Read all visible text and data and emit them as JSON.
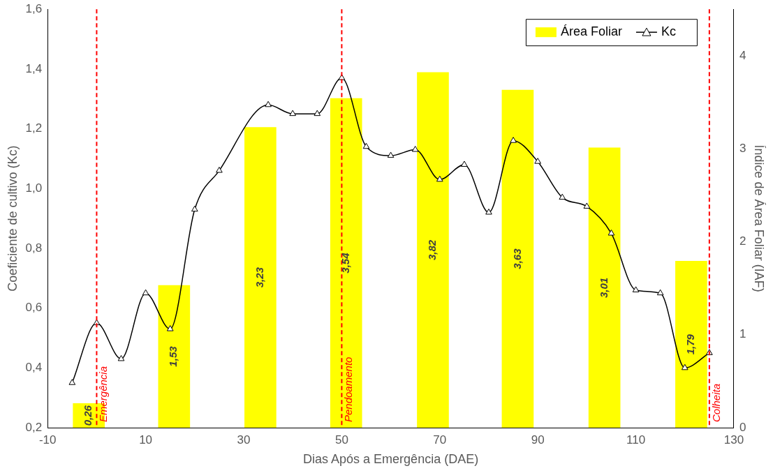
{
  "chart_data": {
    "type": "bar",
    "xlabel": "Dias Após a Emergência (DAE)",
    "ylabel": "Coeficiente de cultivo (Kc)",
    "y2label": "Índice de Área Foliar (IAF)",
    "xlim": [
      -10,
      130
    ],
    "xticks": [
      -10,
      10,
      30,
      50,
      70,
      90,
      110,
      130
    ],
    "ylim": [
      0.2,
      1.6
    ],
    "yticks": [
      {
        "value": 0.2,
        "label": "0,2"
      },
      {
        "value": 0.4,
        "label": "0,4"
      },
      {
        "value": 0.6,
        "label": "0,6"
      },
      {
        "value": 0.8,
        "label": "0,8"
      },
      {
        "value": 1.0,
        "label": "1,0"
      },
      {
        "value": 1.2,
        "label": "1,2"
      },
      {
        "value": 1.4,
        "label": "1,4"
      },
      {
        "value": 1.6,
        "label": "1,6"
      }
    ],
    "y2lim": [
      0,
      4.5
    ],
    "y2ticks": [
      0,
      1,
      2,
      3,
      4
    ],
    "series": [
      {
        "name": "Área Foliar",
        "axis": "y2",
        "color": "#ffff00",
        "x": [
          -1.6,
          15.8,
          33.4,
          50.9,
          68.6,
          85.9,
          103.6,
          121.3
        ],
        "values": [
          0.26,
          1.53,
          3.23,
          3.54,
          3.82,
          3.63,
          3.01,
          1.79
        ],
        "value_labels": [
          "0,26",
          "1,53",
          "3,23",
          "3,54",
          "3,82",
          "3,63",
          "3,01",
          "1,79"
        ]
      },
      {
        "name": "Kc",
        "type": "line",
        "color": "#000000",
        "x": [
          -5,
          0,
          5,
          10,
          15,
          20,
          25,
          35,
          40,
          45,
          50,
          55,
          60,
          65,
          70,
          75,
          80,
          85,
          90,
          95,
          100,
          105,
          110,
          115,
          120,
          125
        ],
        "values": [
          0.35,
          0.55,
          0.43,
          0.65,
          0.53,
          0.93,
          1.06,
          1.28,
          1.25,
          1.25,
          1.37,
          1.14,
          1.11,
          1.13,
          1.03,
          1.08,
          0.92,
          1.16,
          1.09,
          0.97,
          0.94,
          0.85,
          0.66,
          0.65,
          0.4,
          0.45
        ]
      }
    ],
    "ref_lines": [
      {
        "axis": "x",
        "value": 0,
        "label": "Emergência",
        "color": "#ff0000",
        "line_style": "dashed"
      },
      {
        "axis": "x",
        "value": 50,
        "label": "Pendoamento",
        "color": "#ff0000",
        "line_style": "dashed"
      },
      {
        "axis": "x",
        "value": 125,
        "label": "Colheita",
        "color": "#ff0000",
        "line_style": "dashed"
      }
    ],
    "marker": "triangle",
    "legend": "top right",
    "grid": false
  }
}
